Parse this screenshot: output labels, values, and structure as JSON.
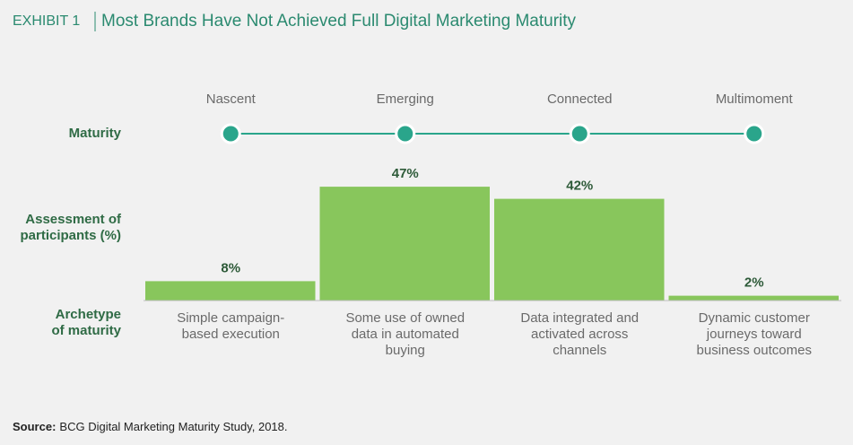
{
  "chart_data": {
    "type": "bar",
    "exhibit": "EXHIBIT 1",
    "title": "Most Brands Have Not Achieved Full Digital Marketing Maturity",
    "row_labels": {
      "maturity": [
        "Maturity"
      ],
      "assessment": [
        "Assessment of",
        "participants (%)"
      ],
      "archetype": [
        "Archetype",
        "of maturity"
      ]
    },
    "categories": [
      "Nascent",
      "Emerging",
      "Connected",
      "Multimoment"
    ],
    "values": [
      8,
      47,
      42,
      2
    ],
    "value_labels": [
      "8%",
      "47%",
      "42%",
      "2%"
    ],
    "archetypes": [
      [
        "Simple campaign-",
        "based execution"
      ],
      [
        "Some use of owned",
        "data in automated",
        "buying"
      ],
      [
        "Data integrated and",
        "activated across",
        "channels"
      ],
      [
        "Dynamic customer",
        "journeys toward",
        "business outcomes"
      ]
    ],
    "color": "#88c65c",
    "maturity_color": "#2aa58b",
    "source_label": "Source:",
    "source": "BCG Digital Marketing Maturity Study, 2018."
  }
}
